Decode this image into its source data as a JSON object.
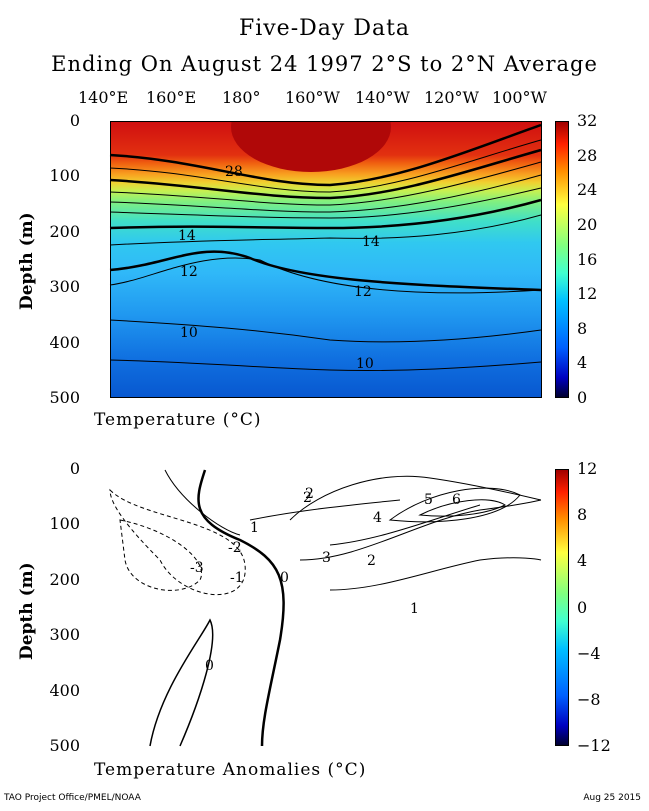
{
  "title": "Five-Day Data",
  "subtitle": "Ending On August 24 1997   2°S to 2°N Average",
  "longitude_labels": [
    "140°E",
    "160°E",
    "180°",
    "160°W",
    "140°W",
    "120°W",
    "100°W"
  ],
  "chart_data": [
    {
      "type": "heatmap",
      "xlabel": "Temperature  (°C)",
      "ylabel": "Depth (m)",
      "ylim": [
        500,
        0
      ],
      "yticks": [
        "0",
        "100",
        "200",
        "300",
        "400",
        "500"
      ],
      "colorbar": {
        "range": [
          0,
          32
        ],
        "ticks": [
          "32",
          "28",
          "24",
          "20",
          "16",
          "12",
          "8",
          "4",
          "0"
        ]
      },
      "contour_labels": [
        "28",
        "14",
        "14",
        "12",
        "12",
        "10",
        "10"
      ]
    },
    {
      "type": "heatmap",
      "xlabel": "Temperature Anomalies (°C)",
      "ylabel": "Depth (m)",
      "ylim": [
        500,
        0
      ],
      "yticks": [
        "0",
        "100",
        "200",
        "300",
        "400",
        "500"
      ],
      "colorbar": {
        "range": [
          -12,
          12
        ],
        "ticks": [
          "12",
          "8",
          "4",
          "0",
          "−4",
          "−8",
          "−12"
        ]
      },
      "contour_labels": [
        "2",
        "1",
        "-1",
        "0",
        "-2",
        "-3",
        "0",
        "2",
        "4",
        "5",
        "6",
        "3",
        "2",
        "1"
      ]
    }
  ],
  "footer_left": "TAO Project Office/PMEL/NOAA",
  "footer_right": "Aug 25 2015"
}
